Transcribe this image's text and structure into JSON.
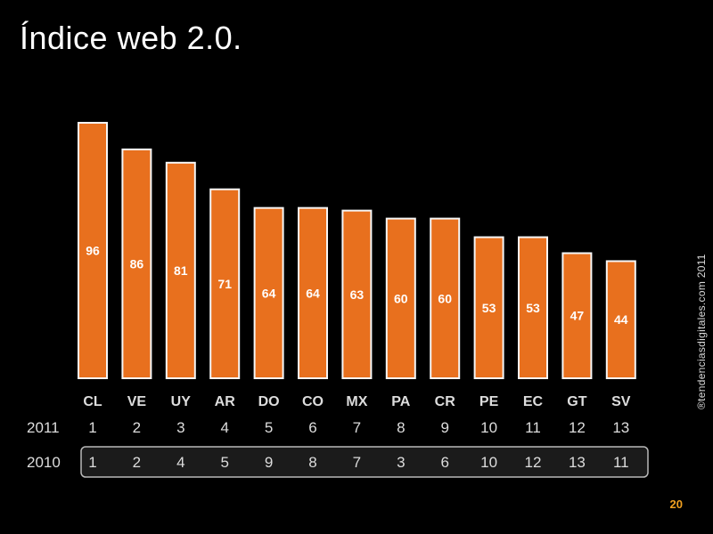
{
  "title": "Índice web 2.0.",
  "side_text": "®tendenciasdigitales.com 2011",
  "page_number": "20",
  "colors": {
    "bar": "#e8701e",
    "bar_stroke": "#f6f6f6",
    "background": "#000000"
  },
  "chart_data": {
    "type": "bar",
    "categories": [
      "CL",
      "VE",
      "UY",
      "AR",
      "DO",
      "CO",
      "MX",
      "PA",
      "CR",
      "PE",
      "EC",
      "GT",
      "SV"
    ],
    "values": [
      96,
      86,
      81,
      71,
      64,
      64,
      63,
      60,
      60,
      53,
      53,
      47,
      44
    ],
    "ranks": [
      {
        "label": "2011",
        "values": [
          "1",
          "2",
          "3",
          "4",
          "5",
          "6",
          "7",
          "8",
          "9",
          "10",
          "11",
          "12",
          "13"
        ]
      },
      {
        "label": "2010",
        "values": [
          "1",
          "2",
          "4",
          "5",
          "9",
          "8",
          "7",
          "3",
          "6",
          "10",
          "12",
          "13",
          "11"
        ]
      }
    ],
    "ylim": [
      0,
      100
    ],
    "grid": false
  }
}
